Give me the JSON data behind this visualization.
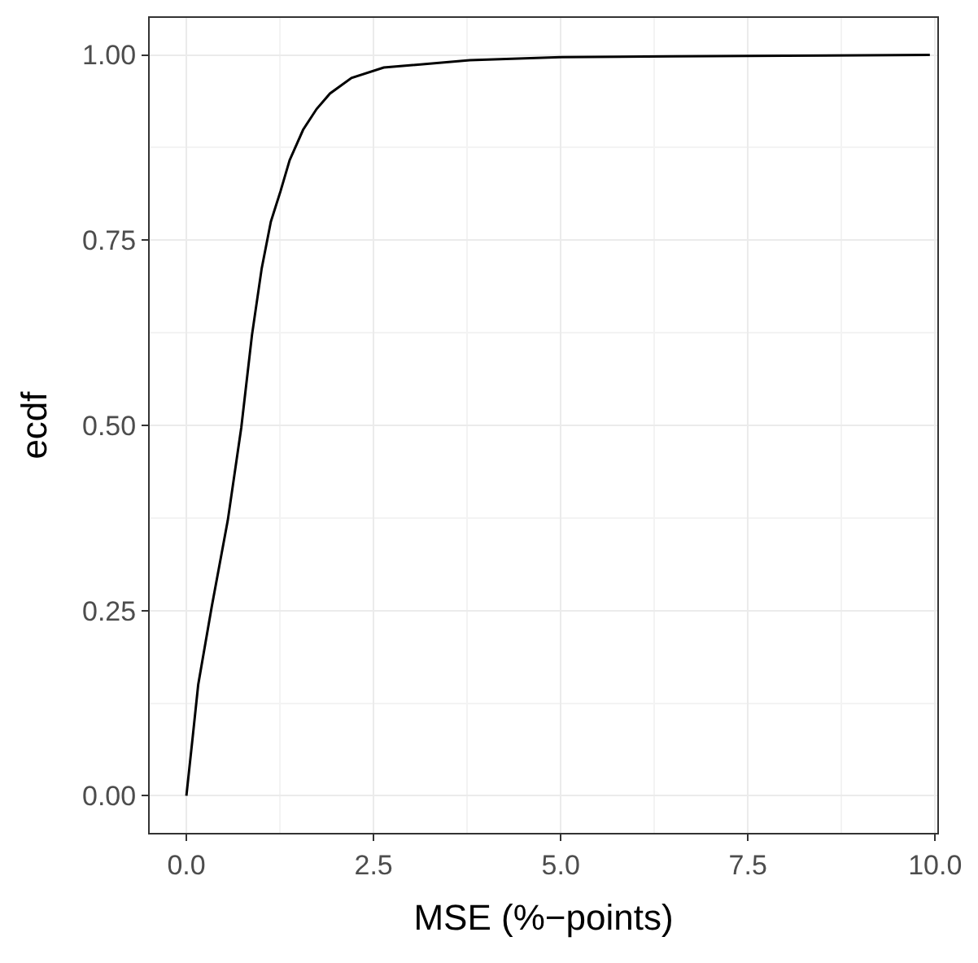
{
  "chart_data": {
    "type": "line",
    "xlabel": "MSE (%−points)",
    "ylabel": "ecdf",
    "x": [
      0,
      0.086,
      0.158,
      0.338,
      0.553,
      0.733,
      0.876,
      1.006,
      1.128,
      1.257,
      1.379,
      1.559,
      1.739,
      1.918,
      2.205,
      2.636,
      3.786,
      5.0,
      6.5,
      8.0,
      9.93
    ],
    "series": [
      {
        "color": "#000000",
        "values": [
          0,
          0.081,
          0.15,
          0.255,
          0.372,
          0.497,
          0.622,
          0.712,
          0.775,
          0.816,
          0.858,
          0.899,
          0.927,
          0.948,
          0.969,
          0.983,
          0.993,
          0.997,
          0.998,
          0.999,
          1.0
        ]
      }
    ],
    "xlim": [
      -0.49,
      10.03
    ],
    "ylim": [
      -0.05,
      1.05
    ],
    "xticks": [
      {
        "value": 0,
        "label": "0.0"
      },
      2.5,
      {
        "value": 5,
        "label": "5.0"
      },
      7.5,
      {
        "value": 10,
        "label": "10.0"
      }
    ],
    "yticks": [
      {
        "value": 0,
        "label": "0.00"
      },
      0.25,
      {
        "value": 0.5,
        "label": "0.50"
      },
      0.75,
      {
        "value": 1,
        "label": "1.00"
      }
    ],
    "grid": true,
    "marker": "none",
    "line_style": "solid"
  }
}
